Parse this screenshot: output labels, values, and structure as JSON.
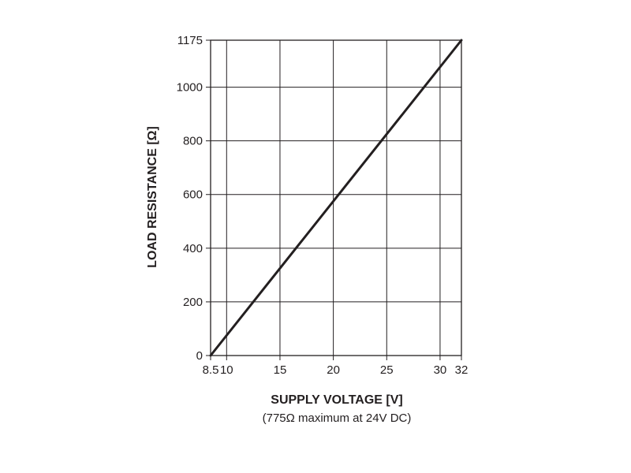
{
  "chart_data": {
    "type": "line",
    "title": "",
    "xlabel": "SUPPLY VOLTAGE [V]",
    "xlabel_note": "(775Ω maximum at 24V DC)",
    "ylabel": "LOAD RESISTANCE [Ω]",
    "xlim": [
      8.5,
      32
    ],
    "ylim": [
      0,
      1175
    ],
    "x_ticks": [
      8.5,
      10,
      15,
      20,
      25,
      30,
      32
    ],
    "x_tick_labels": [
      "8.5",
      "10",
      "15",
      "20",
      "25",
      "30",
      "32"
    ],
    "y_ticks": [
      0,
      200,
      400,
      600,
      800,
      1000,
      1175
    ],
    "y_tick_labels": [
      "0",
      "200",
      "400",
      "600",
      "800",
      "1000",
      "1175"
    ],
    "grid": true,
    "legend": "none",
    "series": [
      {
        "x": [
          8.5,
          32
        ],
        "y": [
          0,
          1175
        ],
        "color": "#231f20"
      }
    ]
  }
}
